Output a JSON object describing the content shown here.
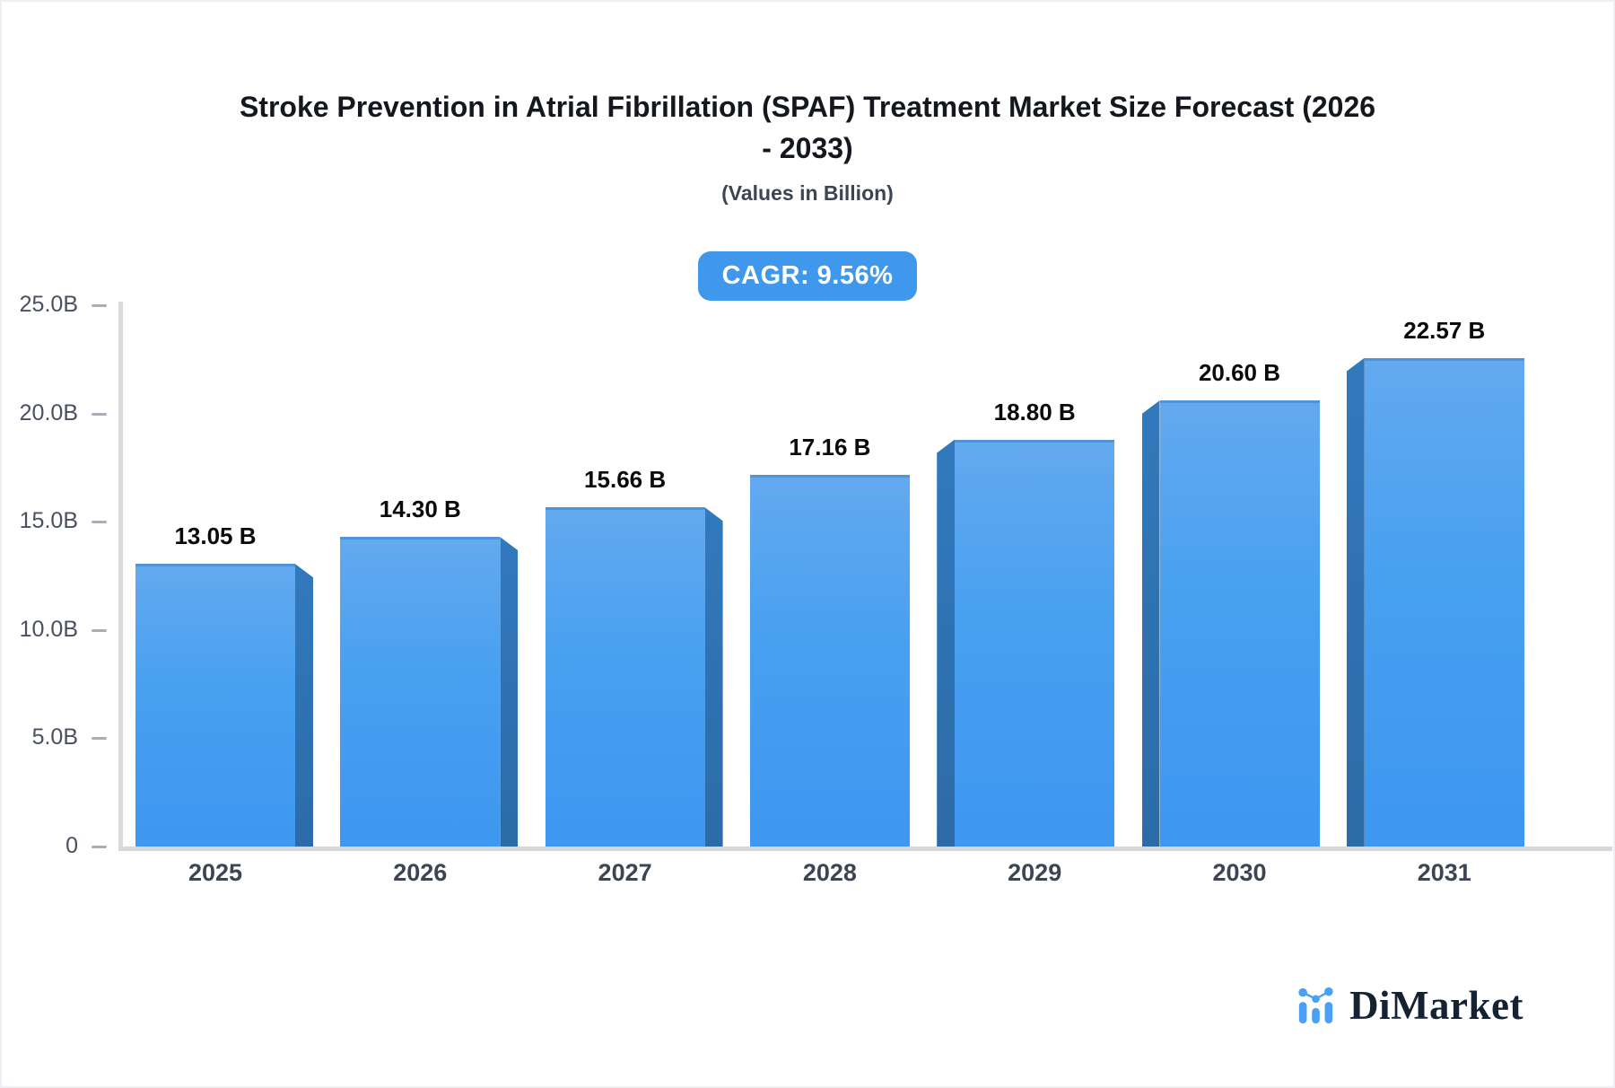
{
  "header": {
    "title": "Stroke Prevention in Atrial Fibrillation (SPAF) Treatment Market Size Forecast (2026 - 2033)",
    "title_line1": "Stroke Prevention in Atrial Fibrillation (SPAF) Treatment Market Size Forecast (2026",
    "title_line2": "- 2033)",
    "subtitle": "(Values in Billion)",
    "cagr_label": "CAGR: 9.56%"
  },
  "chart_data": {
    "type": "bar",
    "title": "Stroke Prevention in Atrial Fibrillation (SPAF) Treatment Market Size Forecast (2026 - 2033)",
    "subtitle": "(Values in Billion)",
    "annotation": "CAGR: 9.56%",
    "categories": [
      "2025",
      "2026",
      "2027",
      "2028",
      "2029",
      "2030",
      "2031"
    ],
    "values": [
      13.05,
      14.3,
      15.66,
      17.16,
      18.8,
      20.6,
      22.57
    ],
    "value_labels": [
      "13.05 B",
      "14.30 B",
      "15.66 B",
      "17.16 B",
      "18.80 B",
      "20.60 B",
      "22.57 B"
    ],
    "xlabel": "",
    "ylabel": "",
    "ylim": [
      0,
      25
    ],
    "yticks": [
      {
        "label": "25.0B",
        "value": 25
      },
      {
        "label": "20.0B",
        "value": 20
      },
      {
        "label": "15.0B",
        "value": 15
      },
      {
        "label": "10.0B",
        "value": 10
      },
      {
        "label": "5.0B",
        "value": 5
      },
      {
        "label": "0",
        "value": 0
      }
    ],
    "grid": false,
    "legend": "none",
    "style_3d": true,
    "bar_color_top": "#63a9f0",
    "bar_color_bottom": "#3e97f0",
    "bar_side_color": "#2e72b2",
    "axis_color": "#d8dade",
    "badge_color": "#3f98eb"
  },
  "footer": {
    "brand": "DiMarket"
  }
}
